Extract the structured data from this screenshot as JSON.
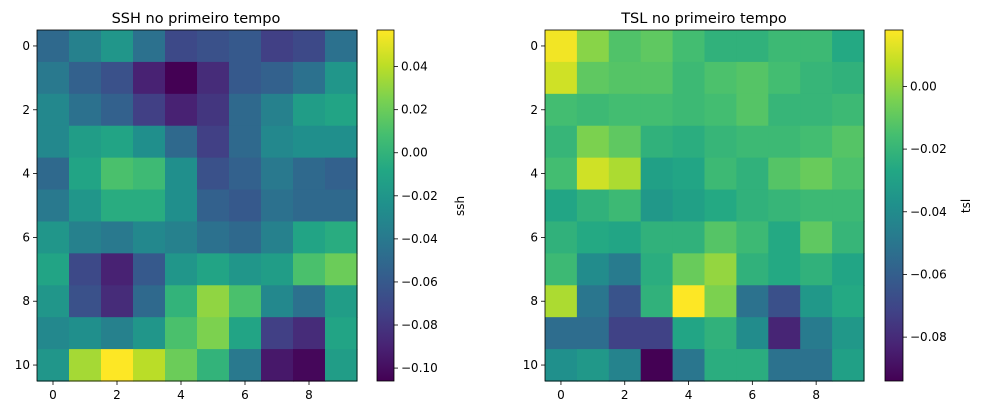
{
  "chart_data": [
    {
      "type": "heatmap",
      "title": "SSH no primeiro tempo",
      "colorbar_label": "ssh",
      "colormap": "viridis",
      "x_ticks": [
        "0",
        "2",
        "4",
        "6",
        "8"
      ],
      "y_ticks": [
        "0",
        "2",
        "4",
        "6",
        "8",
        "10"
      ],
      "colorbar_ticks": [
        "0.04",
        "0.02",
        "0.00",
        "−0.02",
        "−0.04",
        "−0.06",
        "−0.08",
        "−0.10"
      ],
      "colorbar_tick_values": [
        0.04,
        0.02,
        0.0,
        -0.02,
        -0.04,
        -0.06,
        -0.08,
        -0.1
      ],
      "vmin": -0.106,
      "vmax": 0.057,
      "values": [
        [
          -0.05,
          -0.035,
          -0.02,
          -0.045,
          -0.07,
          -0.065,
          -0.06,
          -0.075,
          -0.07,
          -0.045
        ],
        [
          -0.04,
          -0.055,
          -0.065,
          -0.09,
          -0.106,
          -0.085,
          -0.06,
          -0.055,
          -0.045,
          -0.02
        ],
        [
          -0.03,
          -0.045,
          -0.055,
          -0.075,
          -0.09,
          -0.08,
          -0.05,
          -0.035,
          -0.015,
          -0.01
        ],
        [
          -0.03,
          -0.015,
          -0.01,
          -0.025,
          -0.05,
          -0.075,
          -0.05,
          -0.03,
          -0.025,
          -0.025
        ],
        [
          -0.05,
          -0.01,
          0.01,
          0.005,
          -0.025,
          -0.065,
          -0.055,
          -0.04,
          -0.05,
          -0.055
        ],
        [
          -0.04,
          -0.02,
          -0.005,
          -0.005,
          -0.025,
          -0.055,
          -0.06,
          -0.045,
          -0.05,
          -0.05
        ],
        [
          -0.02,
          -0.035,
          -0.04,
          -0.03,
          -0.035,
          -0.045,
          -0.05,
          -0.035,
          -0.01,
          -0.005
        ],
        [
          -0.01,
          -0.07,
          -0.09,
          -0.06,
          -0.02,
          -0.01,
          -0.02,
          -0.015,
          0.01,
          0.02
        ],
        [
          -0.02,
          -0.065,
          -0.085,
          -0.05,
          0.0,
          0.03,
          0.01,
          -0.03,
          -0.045,
          -0.015
        ],
        [
          -0.03,
          -0.025,
          -0.035,
          -0.02,
          0.01,
          0.025,
          -0.01,
          -0.075,
          -0.085,
          -0.01
        ],
        [
          -0.02,
          0.035,
          0.057,
          0.04,
          0.02,
          0.0,
          -0.04,
          -0.095,
          -0.103,
          -0.015
        ]
      ]
    },
    {
      "type": "heatmap",
      "title": "TSL no primeiro tempo",
      "colorbar_label": "tsl",
      "colormap": "viridis",
      "x_ticks": [
        "0",
        "2",
        "4",
        "6",
        "8"
      ],
      "y_ticks": [
        "0",
        "2",
        "4",
        "6",
        "8",
        "10"
      ],
      "colorbar_ticks": [
        "0.00",
        "−0.02",
        "−0.04",
        "−0.06",
        "−0.08"
      ],
      "colorbar_tick_values": [
        0.0,
        -0.02,
        -0.04,
        -0.06,
        -0.08
      ],
      "vmin": -0.094,
      "vmax": 0.018,
      "values": [
        [
          0.016,
          -0.002,
          -0.013,
          -0.01,
          -0.016,
          -0.022,
          -0.022,
          -0.018,
          -0.018,
          -0.026
        ],
        [
          0.01,
          -0.01,
          -0.012,
          -0.012,
          -0.018,
          -0.014,
          -0.012,
          -0.016,
          -0.02,
          -0.022
        ],
        [
          -0.016,
          -0.018,
          -0.016,
          -0.016,
          -0.018,
          -0.016,
          -0.012,
          -0.02,
          -0.02,
          -0.018
        ],
        [
          -0.02,
          -0.004,
          -0.01,
          -0.022,
          -0.024,
          -0.02,
          -0.018,
          -0.018,
          -0.016,
          -0.012
        ],
        [
          -0.016,
          0.01,
          0.004,
          -0.03,
          -0.028,
          -0.018,
          -0.022,
          -0.012,
          -0.008,
          -0.014
        ],
        [
          -0.028,
          -0.022,
          -0.018,
          -0.034,
          -0.03,
          -0.026,
          -0.022,
          -0.02,
          -0.018,
          -0.018
        ],
        [
          -0.022,
          -0.026,
          -0.028,
          -0.022,
          -0.022,
          -0.012,
          -0.018,
          -0.026,
          -0.01,
          -0.02
        ],
        [
          -0.018,
          -0.04,
          -0.048,
          -0.024,
          -0.008,
          0.0,
          -0.022,
          -0.026,
          -0.022,
          -0.028
        ],
        [
          0.004,
          -0.05,
          -0.065,
          -0.022,
          0.018,
          -0.004,
          -0.052,
          -0.066,
          -0.034,
          -0.026
        ],
        [
          -0.054,
          -0.054,
          -0.072,
          -0.072,
          -0.028,
          -0.022,
          -0.04,
          -0.082,
          -0.048,
          -0.034
        ],
        [
          -0.038,
          -0.034,
          -0.044,
          -0.094,
          -0.05,
          -0.024,
          -0.024,
          -0.052,
          -0.052,
          -0.03
        ]
      ]
    }
  ]
}
